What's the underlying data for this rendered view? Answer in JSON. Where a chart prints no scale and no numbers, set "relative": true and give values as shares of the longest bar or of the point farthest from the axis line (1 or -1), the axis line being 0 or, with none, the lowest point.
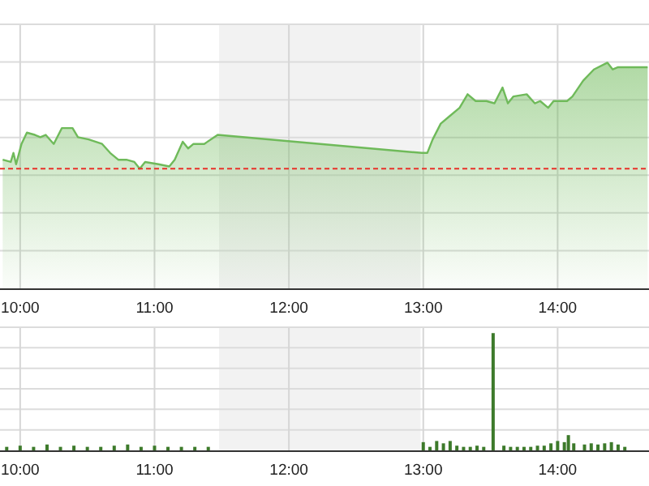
{
  "chart_data": [
    {
      "type": "area",
      "relative": true,
      "x": [
        9.87,
        9.93,
        9.95,
        9.97,
        10.01,
        10.05,
        10.11,
        10.15,
        10.19,
        10.25,
        10.31,
        10.39,
        10.43,
        10.51,
        10.61,
        10.67,
        10.73,
        10.79,
        10.85,
        10.89,
        10.93,
        11.03,
        11.11,
        11.15,
        11.21,
        11.25,
        11.29,
        11.37,
        11.47,
        12.99,
        13.03,
        13.07,
        13.13,
        13.19,
        13.27,
        13.33,
        13.39,
        13.47,
        13.53,
        13.59,
        13.63,
        13.67,
        13.77,
        13.83,
        13.87,
        13.93,
        13.97,
        14.07,
        14.11,
        14.19,
        14.27,
        14.37,
        14.41,
        14.45,
        14.67
      ],
      "series": [
        {
          "color": "#6fba5a",
          "values": [
            0.57,
            0.56,
            0.6,
            0.55,
            0.64,
            0.69,
            0.68,
            0.67,
            0.68,
            0.64,
            0.71,
            0.71,
            0.67,
            0.66,
            0.64,
            0.6,
            0.57,
            0.57,
            0.56,
            0.53,
            0.56,
            0.55,
            0.54,
            0.57,
            0.65,
            0.62,
            0.64,
            0.64,
            0.68,
            0.6,
            0.6,
            0.66,
            0.73,
            0.76,
            0.8,
            0.86,
            0.83,
            0.83,
            0.82,
            0.89,
            0.82,
            0.85,
            0.86,
            0.82,
            0.83,
            0.8,
            0.83,
            0.83,
            0.85,
            0.92,
            0.97,
            1,
            0.97,
            0.98,
            0.98
          ]
        }
      ],
      "xlim": [
        9.85,
        14.68
      ],
      "xticks": [
        {
          "value": 10,
          "label": "10:00"
        },
        {
          "value": 11,
          "label": "11:00"
        },
        {
          "value": 12,
          "label": "12:00"
        },
        {
          "value": 13,
          "label": "13:00"
        },
        {
          "value": 14,
          "label": "14:00"
        }
      ],
      "ref_lines": [
        {
          "axis": "y",
          "value": 0.53,
          "color": "#e8322a",
          "line_style": "dashed"
        }
      ],
      "bands": [
        {
          "axis": "x",
          "from": 11.48,
          "to": 12.98,
          "color": "#f2f2f2"
        }
      ],
      "grid": true
    },
    {
      "type": "bar",
      "relative": true,
      "x": [
        9.9,
        10.0,
        10.1,
        10.2,
        10.3,
        10.4,
        10.5,
        10.6,
        10.7,
        10.8,
        10.9,
        11.0,
        11.1,
        11.2,
        11.3,
        11.4,
        13.0,
        13.05,
        13.1,
        13.15,
        13.2,
        13.25,
        13.3,
        13.35,
        13.4,
        13.45,
        13.52,
        13.6,
        13.65,
        13.7,
        13.75,
        13.8,
        13.85,
        13.9,
        13.95,
        14.0,
        14.05,
        14.08,
        14.12,
        14.2,
        14.25,
        14.3,
        14.35,
        14.4,
        14.45,
        14.5
      ],
      "series": [
        {
          "color": "#3d7a2b",
          "values": [
            0.03,
            0.04,
            0.03,
            0.05,
            0.03,
            0.04,
            0.03,
            0.03,
            0.04,
            0.05,
            0.03,
            0.04,
            0.03,
            0.03,
            0.03,
            0.03,
            0.07,
            0.03,
            0.08,
            0.06,
            0.08,
            0.04,
            0.03,
            0.03,
            0.04,
            0.03,
            1,
            0.04,
            0.03,
            0.03,
            0.03,
            0.03,
            0.04,
            0.04,
            0.06,
            0.08,
            0.07,
            0.13,
            0.06,
            0.05,
            0.06,
            0.05,
            0.06,
            0.07,
            0.05,
            0.03
          ]
        }
      ],
      "xlim": [
        9.85,
        14.68
      ],
      "xticks": [
        {
          "value": 10,
          "label": "10:00"
        },
        {
          "value": 11,
          "label": "11:00"
        },
        {
          "value": 12,
          "label": "12:00"
        },
        {
          "value": 13,
          "label": "13:00"
        },
        {
          "value": 14,
          "label": "14:00"
        }
      ],
      "bands": [
        {
          "axis": "x",
          "from": 11.48,
          "to": 12.98,
          "color": "#f2f2f2"
        }
      ],
      "grid": true
    }
  ]
}
